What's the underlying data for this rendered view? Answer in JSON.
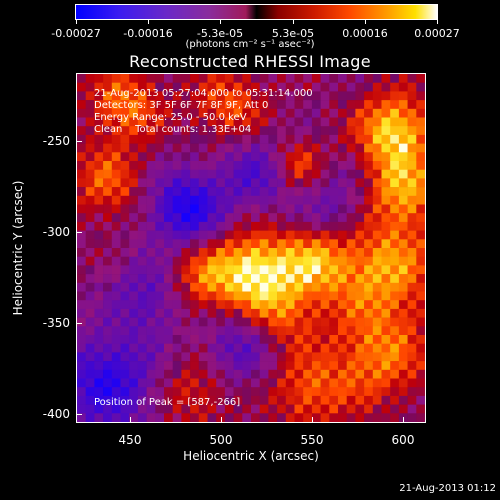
{
  "colorbar": {
    "ticks": [
      "-0.00027",
      "-0.00016",
      "-5.3e-05",
      "5.3e-05",
      "0.00016",
      "0.00027"
    ],
    "units": "(photons cm⁻² s⁻¹ asec⁻²)",
    "range": [
      -0.00027,
      0.00027
    ]
  },
  "title": "Reconstructed RHESSI Image",
  "info": {
    "time_range": "21-Aug-2013 05:27:04.000 to 05:31:14.000",
    "detectors": "Detectors: 3F 5F 6F 7F 8F 9F, Att 0",
    "energy": "Energy Range: 25.0 - 50.0 keV",
    "clean": "Clean    Total counts: 1.33E+04",
    "peak": "Position of Peak = [587,-266]"
  },
  "axes": {
    "xlabel": "Heliocentric X (arcsec)",
    "ylabel": "Heliocentric Y (arcsec)",
    "xticks": [
      "450",
      "500",
      "550",
      "600"
    ],
    "yticks": [
      "-250",
      "-300",
      "-350",
      "-400"
    ],
    "xlim": [
      420,
      612
    ],
    "ylim": [
      -405,
      -213
    ]
  },
  "timestamp": "21-Aug-2013 01:12"
}
